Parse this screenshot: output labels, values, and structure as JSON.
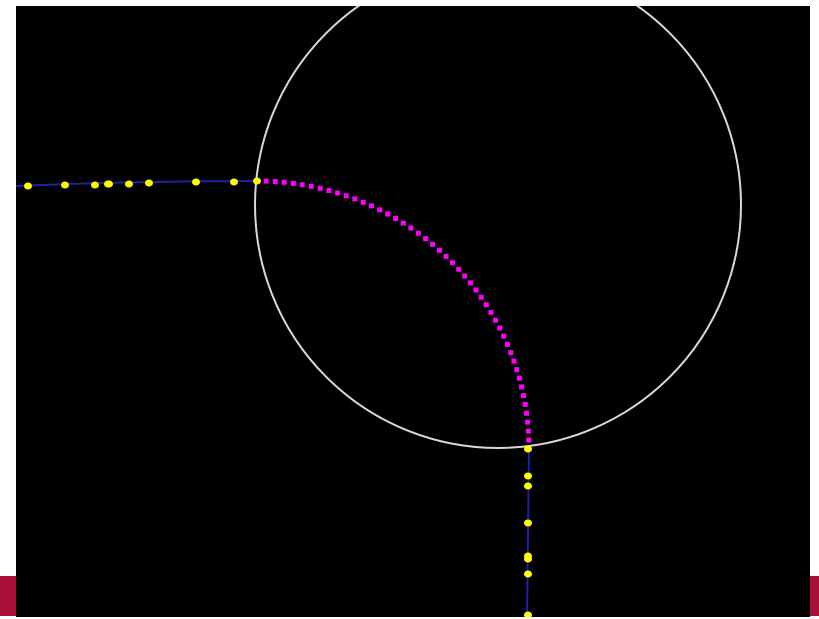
{
  "colors": {
    "page_background": "#ffffff",
    "bottom_bar": "#a80f3a",
    "canvas_background": "#000000",
    "circle_stroke": "#d8d8d8",
    "road_line": "#1f1fa8",
    "waypoint": "#ffff00",
    "arc_point": "#ff00ff"
  },
  "scene": {
    "road_line_count": 2,
    "circle_count": 1,
    "horizontal_waypoint_count": 10,
    "vertical_waypoint_count": 8,
    "arc_point_count": 48
  }
}
